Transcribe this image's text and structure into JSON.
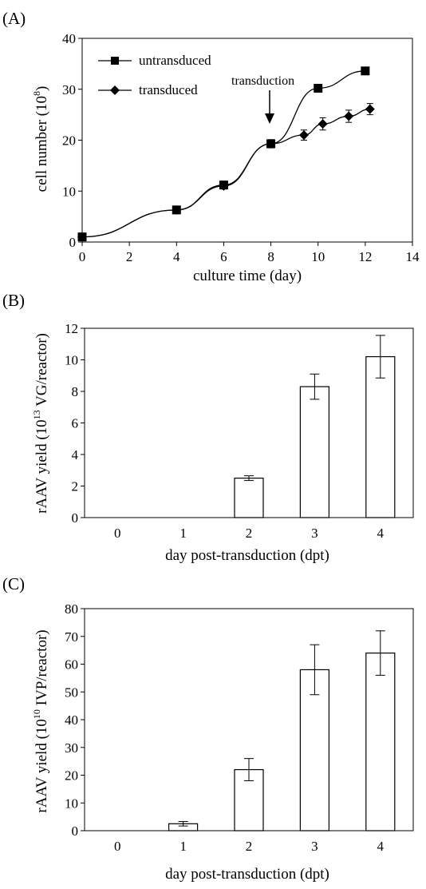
{
  "chart_data": [
    {
      "panel": "(A)",
      "type": "line",
      "xlabel": "culture time (day)",
      "ylabel_main": "cell number (10",
      "ylabel_sup": "8",
      "ylabel_tail": ")",
      "xlim": [
        0,
        14
      ],
      "ylim": [
        0,
        40
      ],
      "xticks": [
        0,
        2,
        4,
        6,
        8,
        10,
        12,
        14
      ],
      "yticks": [
        0,
        10,
        20,
        30,
        40
      ],
      "grid": false,
      "legend_position": "top-left",
      "series": [
        {
          "name": "untransduced",
          "marker": "square",
          "x": [
            0,
            4,
            6,
            8,
            10,
            12
          ],
          "y": [
            1.0,
            6.3,
            11.2,
            19.3,
            30.2,
            33.6
          ],
          "err": [
            0.3,
            0.5,
            0.6,
            0.8,
            0,
            0
          ]
        },
        {
          "name": "transduced",
          "marker": "diamond",
          "x": [
            0,
            4,
            6,
            8,
            9.4,
            10.2,
            11.3,
            12.2
          ],
          "y": [
            1.0,
            6.3,
            11.0,
            19.3,
            21.0,
            23.2,
            24.7,
            26.1
          ],
          "err": [
            0.3,
            0.5,
            0.6,
            0.8,
            1.0,
            1.2,
            1.2,
            1.1
          ]
        }
      ],
      "annotation": {
        "text": "transduction",
        "x": 8
      }
    },
    {
      "panel": "(B)",
      "type": "bar",
      "xlabel": "day post-transduction (dpt)",
      "ylabel_main": "rAAV yield (10",
      "ylabel_sup": "13",
      "ylabel_tail": " VG/reactor)",
      "categories": [
        "0",
        "1",
        "2",
        "3",
        "4"
      ],
      "values": [
        0,
        0,
        2.5,
        8.3,
        10.2
      ],
      "errors": [
        0,
        0,
        0.15,
        0.8,
        1.35
      ],
      "ylim": [
        0,
        12
      ],
      "yticks": [
        0,
        2,
        4,
        6,
        8,
        10,
        12
      ],
      "grid": false
    },
    {
      "panel": "(C)",
      "type": "bar",
      "xlabel": "day post-transduction (dpt)",
      "ylabel_main": "rAAV yield (10",
      "ylabel_sup": "10",
      "ylabel_tail": " IVP/reactor)",
      "categories": [
        "0",
        "1",
        "2",
        "3",
        "4"
      ],
      "values": [
        0,
        2.5,
        22,
        58,
        64
      ],
      "errors": [
        0,
        0.8,
        4,
        9,
        8
      ],
      "ylim": [
        0,
        80
      ],
      "yticks": [
        0,
        10,
        20,
        30,
        40,
        50,
        60,
        70,
        80
      ],
      "grid": false
    }
  ]
}
